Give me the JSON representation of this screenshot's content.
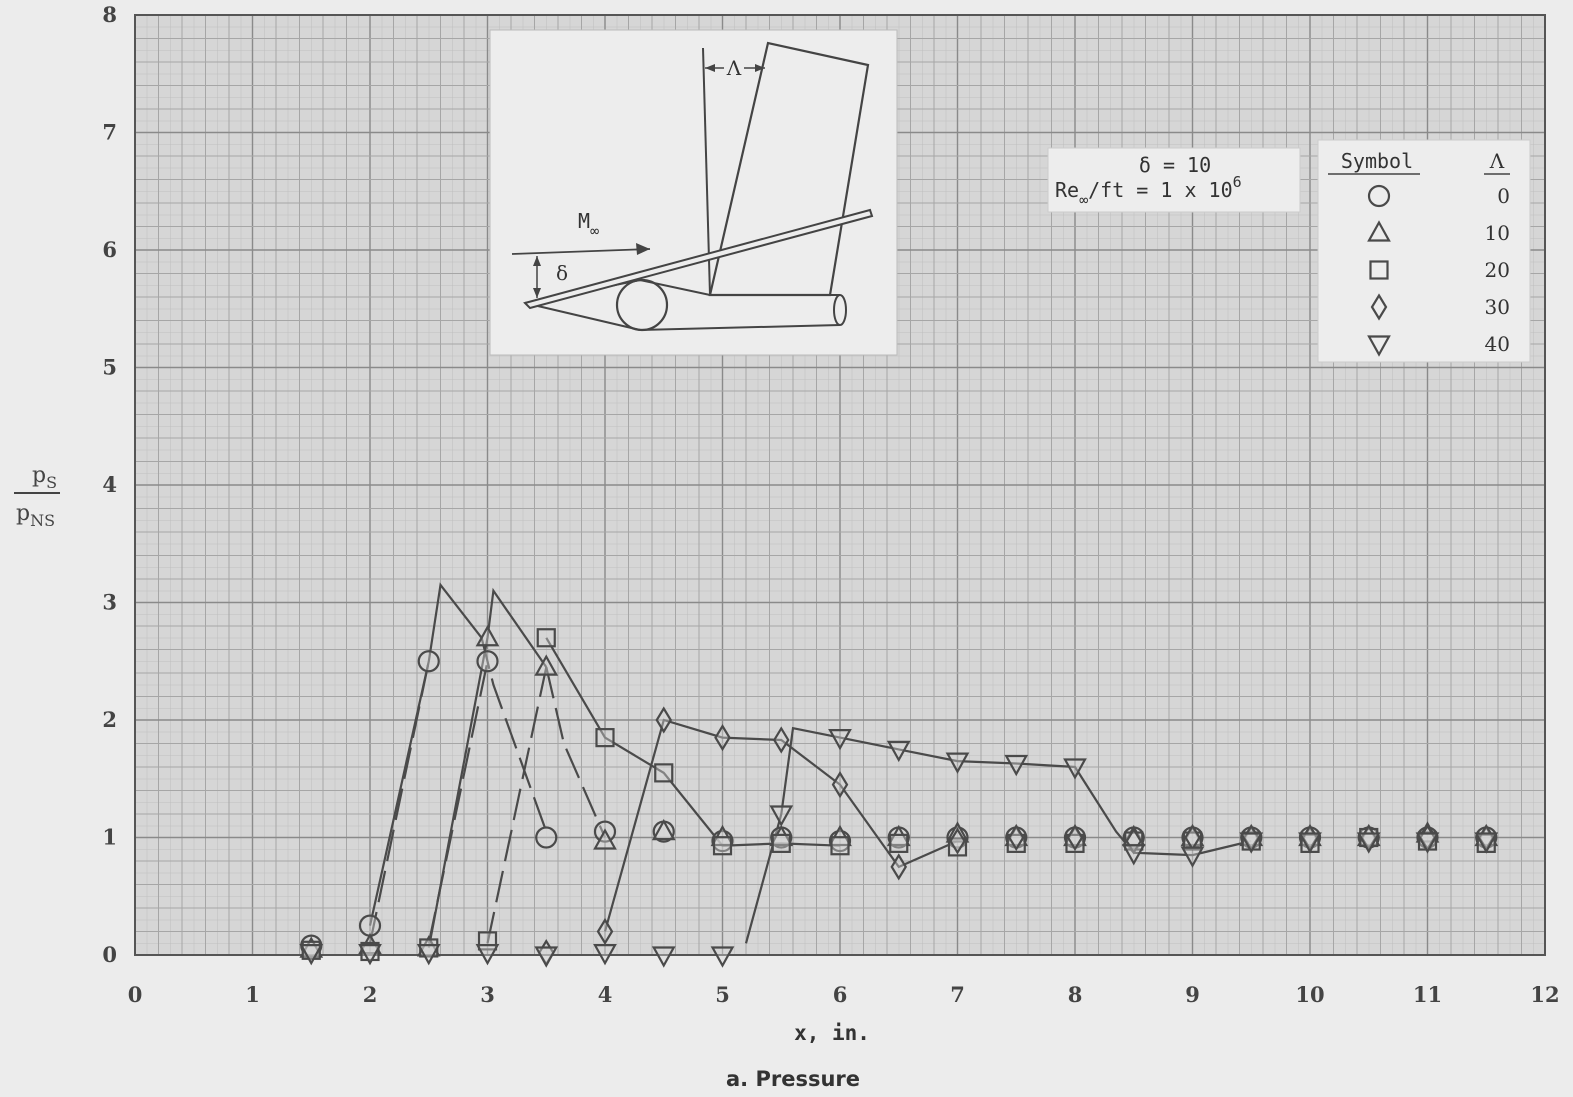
{
  "chart_data": {
    "type": "line",
    "xlabel": "x, in.",
    "ylabel_num": "p",
    "ylabel_num_sub": "S",
    "ylabel_den": "p",
    "ylabel_den_sub": "NS",
    "caption": "a. Pressure",
    "xlim": [
      0,
      12
    ],
    "ylim": [
      0,
      8
    ],
    "xticks": [
      "0",
      "1",
      "2",
      "3",
      "4",
      "5",
      "6",
      "7",
      "8",
      "9",
      "10",
      "11",
      "12"
    ],
    "yticks": [
      "0",
      "1",
      "2",
      "3",
      "4",
      "5",
      "6",
      "7",
      "8"
    ],
    "grid": true,
    "conditions": {
      "delta_line": "δ = 10",
      "re_prefix": "Re",
      "re_sub": "∞",
      "re_body": "/ft = 1 x 10",
      "re_exp": "6"
    },
    "legend": {
      "placement": "top-right",
      "symbol_header": "Symbol",
      "lambda_header": "Λ"
    },
    "sketch": {
      "mach_label": "M",
      "mach_sub": "∞",
      "delta_label": "δ",
      "sweep_label": "Λ"
    },
    "series": [
      {
        "name": "0",
        "symbol": "circle",
        "points": [
          [
            1.5,
            0.08
          ],
          [
            2.0,
            0.25
          ],
          [
            2.5,
            2.5
          ],
          [
            3.0,
            2.5
          ],
          [
            3.5,
            1.0
          ],
          [
            4.0,
            1.05
          ],
          [
            4.5,
            1.05
          ],
          [
            5.0,
            0.97
          ],
          [
            5.5,
            1.0
          ],
          [
            6.0,
            0.97
          ],
          [
            6.5,
            1.0
          ],
          [
            7.0,
            1.0
          ],
          [
            7.5,
            1.0
          ],
          [
            8.0,
            1.0
          ],
          [
            8.5,
            1.0
          ],
          [
            9.0,
            1.0
          ],
          [
            9.5,
            1.0
          ],
          [
            10.0,
            1.0
          ],
          [
            10.5,
            1.0
          ],
          [
            11.0,
            1.0
          ],
          [
            11.5,
            1.0
          ]
        ],
        "line": [
          [
            2.0,
            0.25
          ],
          [
            2.5,
            2.5
          ],
          [
            2.6,
            3.15
          ],
          [
            2.95,
            2.7
          ]
        ],
        "line_dashed": false
      },
      {
        "name": "10",
        "symbol": "triangle-up",
        "points": [
          [
            1.5,
            0.05
          ],
          [
            2.0,
            0.08
          ],
          [
            2.5,
            0.06
          ],
          [
            3.0,
            2.7
          ],
          [
            3.5,
            2.45
          ],
          [
            4.0,
            0.97
          ],
          [
            4.5,
            1.05
          ],
          [
            5.0,
            1.0
          ],
          [
            5.5,
            1.0
          ],
          [
            6.0,
            1.0
          ],
          [
            6.5,
            1.0
          ],
          [
            7.0,
            1.03
          ],
          [
            7.5,
            1.0
          ],
          [
            8.0,
            1.0
          ],
          [
            8.5,
            1.0
          ],
          [
            9.0,
            1.0
          ],
          [
            9.5,
            1.0
          ],
          [
            10.0,
            1.0
          ],
          [
            10.5,
            1.0
          ],
          [
            11.0,
            1.03
          ],
          [
            11.5,
            1.0
          ]
        ],
        "line": [
          [
            2.5,
            0.06
          ],
          [
            3.0,
            2.7
          ],
          [
            3.05,
            3.1
          ],
          [
            3.5,
            2.45
          ]
        ],
        "line_dashed": false
      },
      {
        "name": "20",
        "symbol": "square",
        "points": [
          [
            1.5,
            0.04
          ],
          [
            2.0,
            0.03
          ],
          [
            2.5,
            0.06
          ],
          [
            3.0,
            0.12
          ],
          [
            3.5,
            2.7
          ],
          [
            4.0,
            1.85
          ],
          [
            4.5,
            1.55
          ],
          [
            5.0,
            0.93
          ],
          [
            5.5,
            0.95
          ],
          [
            6.0,
            0.93
          ],
          [
            6.5,
            0.95
          ],
          [
            7.0,
            0.92
          ],
          [
            7.5,
            0.95
          ],
          [
            8.0,
            0.95
          ],
          [
            8.5,
            0.97
          ],
          [
            9.0,
            0.97
          ],
          [
            9.5,
            0.97
          ],
          [
            10.0,
            0.95
          ],
          [
            10.5,
            1.0
          ],
          [
            11.0,
            0.97
          ],
          [
            11.5,
            0.95
          ]
        ],
        "line": [
          [
            3.5,
            2.7
          ],
          [
            4.0,
            1.85
          ],
          [
            4.5,
            1.55
          ],
          [
            5.0,
            0.93
          ],
          [
            5.5,
            0.95
          ],
          [
            6.0,
            0.93
          ]
        ],
        "line_dashed": false
      },
      {
        "name": "30",
        "symbol": "diamond",
        "points": [
          [
            3.5,
            0.02
          ],
          [
            4.0,
            0.2
          ],
          [
            4.5,
            2.0
          ],
          [
            5.0,
            1.85
          ],
          [
            5.5,
            1.83
          ],
          [
            6.0,
            1.45
          ],
          [
            6.5,
            0.75
          ],
          [
            7.0,
            0.97
          ],
          [
            7.5,
            1.0
          ],
          [
            8.0,
            1.0
          ],
          [
            8.5,
            0.97
          ],
          [
            9.0,
            1.0
          ],
          [
            9.5,
            1.0
          ],
          [
            10.0,
            1.0
          ],
          [
            10.5,
            1.0
          ],
          [
            11.0,
            1.0
          ],
          [
            11.5,
            1.0
          ]
        ],
        "line": [
          [
            4.0,
            0.2
          ],
          [
            4.5,
            2.0
          ],
          [
            5.0,
            1.85
          ],
          [
            5.5,
            1.83
          ],
          [
            6.0,
            1.45
          ],
          [
            6.5,
            0.75
          ],
          [
            7.0,
            0.97
          ]
        ],
        "line_dashed": false
      },
      {
        "name": "40",
        "symbol": "triangle-down",
        "points": [
          [
            1.5,
            0.02
          ],
          [
            2.0,
            0.02
          ],
          [
            2.5,
            0.02
          ],
          [
            3.0,
            0.02
          ],
          [
            3.5,
            0.0
          ],
          [
            4.0,
            0.02
          ],
          [
            4.5,
            0.0
          ],
          [
            5.0,
            0.0
          ],
          [
            5.5,
            1.2
          ],
          [
            6.0,
            1.85
          ],
          [
            6.5,
            1.75
          ],
          [
            7.0,
            1.65
          ],
          [
            7.5,
            1.63
          ],
          [
            8.0,
            1.6
          ],
          [
            8.5,
            0.87
          ],
          [
            9.0,
            0.85
          ],
          [
            9.5,
            0.97
          ],
          [
            10.0,
            0.97
          ],
          [
            10.5,
            0.97
          ],
          [
            11.0,
            0.97
          ],
          [
            11.5,
            0.97
          ]
        ],
        "line": [
          [
            5.2,
            0.1
          ],
          [
            5.5,
            1.2
          ],
          [
            5.6,
            1.93
          ],
          [
            6.0,
            1.85
          ],
          [
            6.5,
            1.75
          ],
          [
            7.0,
            1.65
          ],
          [
            7.5,
            1.63
          ],
          [
            8.0,
            1.6
          ],
          [
            8.35,
            1.05
          ],
          [
            8.5,
            0.87
          ],
          [
            9.0,
            0.85
          ],
          [
            9.5,
            0.97
          ]
        ],
        "line_dashed": false
      }
    ],
    "dashed_lines": [
      [
        [
          2.0,
          0.1
        ],
        [
          2.5,
          2.5
        ]
      ],
      [
        [
          2.5,
          0.1
        ],
        [
          3.0,
          2.5
        ]
      ],
      [
        [
          3.0,
          0.1
        ],
        [
          3.5,
          2.45
        ]
      ],
      [
        [
          2.95,
          2.7
        ],
        [
          3.05,
          2.3
        ],
        [
          3.5,
          1.05
        ]
      ],
      [
        [
          3.5,
          2.45
        ],
        [
          3.65,
          1.8
        ],
        [
          4.0,
          1.0
        ]
      ]
    ]
  }
}
